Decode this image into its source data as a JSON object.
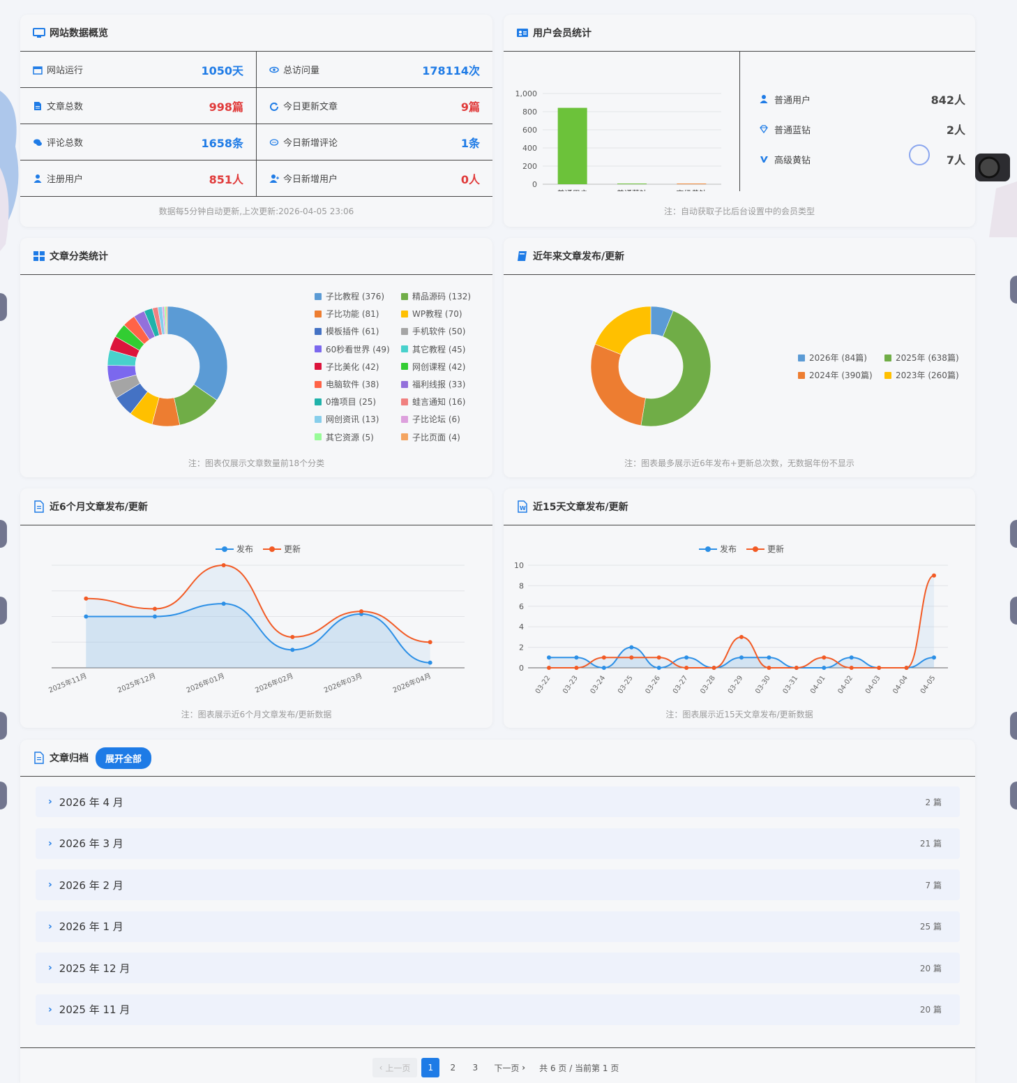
{
  "overview": {
    "title": "网站数据概览",
    "stats": [
      {
        "label": "网站运行",
        "value": "1050天",
        "color": "blue",
        "icon": "calendar-icon"
      },
      {
        "label": "总访问量",
        "value": "178114次",
        "color": "blue",
        "icon": "eye-icon"
      },
      {
        "label": "文章总数",
        "value": "998篇",
        "color": "red",
        "icon": "document-icon"
      },
      {
        "label": "今日更新文章",
        "value": "9篇",
        "color": "red",
        "icon": "refresh-icon"
      },
      {
        "label": "评论总数",
        "value": "1658条",
        "color": "blue",
        "icon": "comments-icon"
      },
      {
        "label": "今日新增评论",
        "value": "1条",
        "color": "blue",
        "icon": "comment-icon"
      },
      {
        "label": "注册用户",
        "value": "851人",
        "color": "red",
        "icon": "user-icon"
      },
      {
        "label": "今日新增用户",
        "value": "0人",
        "color": "red",
        "icon": "user-plus-icon"
      }
    ],
    "note": "数据每5分钟自动更新,上次更新:2026-04-05 23:06"
  },
  "members": {
    "title": "用户会员统计",
    "items": [
      {
        "label": "普通用户",
        "value": "842人",
        "icon": "user-icon"
      },
      {
        "label": "普通蓝钻",
        "value": "2人",
        "icon": "diamond-icon"
      },
      {
        "label": "高级黄钻",
        "value": "7人",
        "icon": "v-icon"
      }
    ],
    "note": "注：自动获取子比后台设置中的会员类型"
  },
  "categories": {
    "title": "文章分类统计",
    "note": "注：图表仅展示文章数量前18个分类"
  },
  "years": {
    "title": "近年来文章发布/更新",
    "note": "注：图表最多展示近6年发布+更新总次数，无数据年份不显示"
  },
  "months": {
    "title": "近6个月文章发布/更新",
    "note": "注：图表展示近6个月文章发布/更新数据"
  },
  "days": {
    "title": "近15天文章发布/更新",
    "note": "注：图表展示近15天文章发布/更新数据"
  },
  "archive": {
    "title": "文章归档",
    "expand_label": "展开全部",
    "rows": [
      {
        "month": "2026 年 4 月",
        "count": "2 篇"
      },
      {
        "month": "2026 年 3 月",
        "count": "21 篇"
      },
      {
        "month": "2026 年 2 月",
        "count": "7 篇"
      },
      {
        "month": "2026 年 1 月",
        "count": "25 篇"
      },
      {
        "month": "2025 年 12 月",
        "count": "20 篇"
      },
      {
        "month": "2025 年 11 月",
        "count": "20 篇"
      }
    ],
    "pager": {
      "prev": "上一页",
      "pages": [
        "1",
        "2",
        "3"
      ],
      "next": "下一页",
      "info": "共 6 页 / 当前第 1 页"
    }
  },
  "colors": {
    "blue": "#1e7be6",
    "red": "#e03a3a",
    "publish": "#2b8fe6",
    "update": "#f25a24"
  },
  "chart_data": [
    {
      "id": "members",
      "type": "bar",
      "categories": [
        "普通用户",
        "普通蓝钻",
        "高级黄钻"
      ],
      "values": [
        842,
        2,
        7
      ],
      "colors": [
        "#6cc23a",
        "#6cc23a",
        "#f08a3a"
      ],
      "ylim": [
        0,
        1000
      ],
      "yticks": [
        "0",
        "200",
        "400",
        "600",
        "800",
        "1,000"
      ],
      "grid": true
    },
    {
      "id": "categories",
      "type": "pie",
      "donut": true,
      "legend_position": "right",
      "slices": [
        {
          "label": "子比教程 (376)",
          "value": 376,
          "color": "#5b9bd5"
        },
        {
          "label": "精品源码 (132)",
          "value": 132,
          "color": "#70ad47"
        },
        {
          "label": "子比功能 (81)",
          "value": 81,
          "color": "#ed7d31"
        },
        {
          "label": "WP教程 (70)",
          "value": 70,
          "color": "#ffc000"
        },
        {
          "label": "模板插件 (61)",
          "value": 61,
          "color": "#4472c4"
        },
        {
          "label": "手机软件 (50)",
          "value": 50,
          "color": "#a5a5a5"
        },
        {
          "label": "60秒看世界 (49)",
          "value": 49,
          "color": "#7b68ee"
        },
        {
          "label": "其它教程 (45)",
          "value": 45,
          "color": "#48d1cc"
        },
        {
          "label": "子比美化 (42)",
          "value": 42,
          "color": "#dc143c"
        },
        {
          "label": "网创课程 (42)",
          "value": 42,
          "color": "#32cd32"
        },
        {
          "label": "电脑软件 (38)",
          "value": 38,
          "color": "#ff6347"
        },
        {
          "label": "福利线报 (33)",
          "value": 33,
          "color": "#9370db"
        },
        {
          "label": "0撸项目 (25)",
          "value": 25,
          "color": "#20b2aa"
        },
        {
          "label": "蛙言通知 (16)",
          "value": 16,
          "color": "#f08080"
        },
        {
          "label": "网创资讯 (13)",
          "value": 13,
          "color": "#87ceeb"
        },
        {
          "label": "子比论坛 (6)",
          "value": 6,
          "color": "#dda0dd"
        },
        {
          "label": "其它资源 (5)",
          "value": 5,
          "color": "#98fb98"
        },
        {
          "label": "子比页面 (4)",
          "value": 4,
          "color": "#f4a460"
        }
      ]
    },
    {
      "id": "years",
      "type": "pie",
      "donut": true,
      "legend_position": "right",
      "slices": [
        {
          "label": "2026年 (84篇)",
          "value": 84,
          "color": "#5b9bd5"
        },
        {
          "label": "2025年 (638篇)",
          "value": 638,
          "color": "#70ad47"
        },
        {
          "label": "2024年 (390篇)",
          "value": 390,
          "color": "#ed7d31"
        },
        {
          "label": "2023年 (260篇)",
          "value": 260,
          "color": "#ffc000"
        }
      ]
    },
    {
      "id": "months",
      "type": "line",
      "categories": [
        "2025年11月",
        "2025年12月",
        "2026年01月",
        "2026年02月",
        "2026年03月",
        "2026年04月"
      ],
      "series": [
        {
          "name": "发布",
          "values": [
            20,
            20,
            25,
            7,
            21,
            2
          ],
          "color": "#2b8fe6"
        },
        {
          "name": "更新",
          "values": [
            27,
            23,
            40,
            12,
            22,
            10
          ],
          "color": "#f25a24"
        }
      ],
      "ylim": [
        0,
        40
      ],
      "yticks": [
        "0",
        "10",
        "20",
        "30",
        "40"
      ],
      "legend_position": "top"
    },
    {
      "id": "days",
      "type": "line",
      "categories": [
        "03-22",
        "03-23",
        "03-24",
        "03-25",
        "03-26",
        "03-27",
        "03-28",
        "03-29",
        "03-30",
        "03-31",
        "04-01",
        "04-02",
        "04-03",
        "04-04",
        "04-05"
      ],
      "series": [
        {
          "name": "发布",
          "values": [
            1,
            1,
            0,
            2,
            0,
            1,
            0,
            1,
            1,
            0,
            0,
            1,
            0,
            0,
            1
          ],
          "color": "#2b8fe6"
        },
        {
          "name": "更新",
          "values": [
            0,
            0,
            1,
            1,
            1,
            0,
            0,
            3,
            0,
            0,
            1,
            0,
            0,
            0,
            9
          ],
          "color": "#f25a24"
        }
      ],
      "ylim": [
        0,
        10
      ],
      "yticks": [
        "0",
        "2",
        "4",
        "6",
        "8",
        "10"
      ],
      "legend_position": "top"
    }
  ]
}
